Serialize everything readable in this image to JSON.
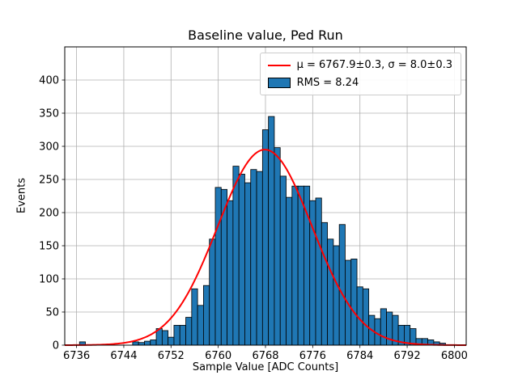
{
  "chart_data": {
    "type": "bar",
    "subtype": "histogram",
    "title": "Baseline value, Ped Run",
    "xlabel": "Sample Value [ADC Counts]",
    "ylabel": "Events",
    "xlim": [
      6734,
      6802
    ],
    "ylim": [
      0,
      450
    ],
    "xticks": [
      6736,
      6744,
      6752,
      6760,
      6768,
      6776,
      6784,
      6792,
      6800
    ],
    "yticks": [
      0,
      50,
      100,
      150,
      200,
      250,
      300,
      350,
      400
    ],
    "grid": true,
    "bin_width": 1,
    "bin_centers": [
      6737,
      6746,
      6747,
      6748,
      6749,
      6750,
      6751,
      6752,
      6753,
      6754,
      6755,
      6756,
      6757,
      6758,
      6759,
      6760,
      6761,
      6762,
      6763,
      6764,
      6765,
      6766,
      6767,
      6768,
      6769,
      6770,
      6771,
      6772,
      6773,
      6774,
      6775,
      6776,
      6777,
      6778,
      6779,
      6780,
      6781,
      6782,
      6783,
      6784,
      6785,
      6786,
      6787,
      6788,
      6789,
      6790,
      6791,
      6792,
      6793,
      6794,
      6795,
      6796,
      6797,
      6798
    ],
    "counts": [
      5,
      5,
      4,
      6,
      8,
      25,
      22,
      12,
      30,
      30,
      42,
      85,
      60,
      90,
      160,
      238,
      235,
      218,
      270,
      258,
      245,
      265,
      262,
      325,
      345,
      298,
      255,
      223,
      240,
      240,
      240,
      218,
      222,
      185,
      160,
      150,
      182,
      128,
      130,
      88,
      85,
      45,
      40,
      55,
      50,
      45,
      30,
      30,
      25,
      10,
      10,
      8,
      5,
      3
    ],
    "fit": {
      "type": "gaussian",
      "mu": 6767.9,
      "mu_err": 0.3,
      "sigma": 8.0,
      "sigma_err": 0.3,
      "amplitude": 295
    },
    "rms": 8.24,
    "legend": {
      "position": "upper right",
      "items": [
        {
          "label": "μ = 6767.9±0.3, σ = 8.0±0.3",
          "swatch": "line",
          "color": "#ff0000"
        },
        {
          "label": "RMS = 8.24",
          "swatch": "patch",
          "color": "#1f77b4"
        }
      ]
    },
    "colors": {
      "bar_fill": "#1f77b4",
      "bar_edge": "#000000",
      "fit_line": "#ff0000",
      "grid": "#b0b0b0",
      "axes": "#000000",
      "background": "#ffffff"
    }
  }
}
